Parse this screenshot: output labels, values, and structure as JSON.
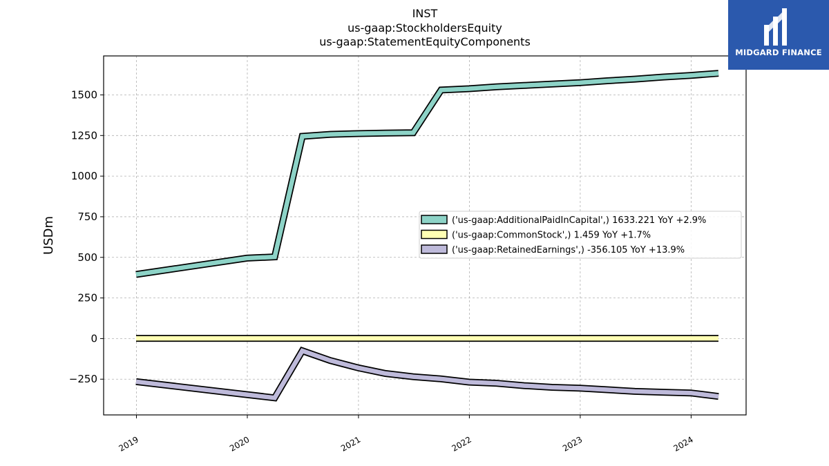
{
  "titles": [
    "INST",
    "us-gaap:StockholdersEquity",
    "us-gaap:StatementEquityComponents"
  ],
  "logo": {
    "text": "MIDGARD FINANCE",
    "background": "#2b59ad"
  },
  "chart_data": {
    "type": "line",
    "title": "INST\nus-gaap:StockholdersEquity\nus-gaap:StatementEquityComponents",
    "xlabel": "",
    "ylabel": "USDm",
    "xlim": [
      "2018-09-15",
      "2024-06-30"
    ],
    "ylim": [
      -470,
      1740
    ],
    "x_ticks": [
      "2019",
      "2020",
      "2021",
      "2022",
      "2023",
      "2024"
    ],
    "y_ticks": [
      -250,
      0,
      250,
      500,
      750,
      1000,
      1250,
      1500
    ],
    "grid": true,
    "legend_position": "center-right",
    "x": [
      "2018-12-31",
      "2019-12-31",
      "2020-03-31",
      "2020-06-30",
      "2020-09-30",
      "2020-12-31",
      "2021-03-31",
      "2021-06-30",
      "2021-09-30",
      "2021-12-31",
      "2022-03-31",
      "2022-06-30",
      "2022-09-30",
      "2022-12-31",
      "2023-03-31",
      "2023-06-30",
      "2023-09-30",
      "2023-12-31",
      "2024-03-31"
    ],
    "series": [
      {
        "name": "('us-gaap:AdditionalPaidInCapital',) 1633.221 YoY +2.9%",
        "color": "#8dd3c7",
        "values": [
          395,
          495,
          503,
          1245,
          1257,
          1262,
          1265,
          1267,
          1530,
          1538,
          1550,
          1558,
          1567,
          1575,
          1587,
          1597,
          1610,
          1620,
          1633
        ]
      },
      {
        "name": "('us-gaap:CommonStock',) 1.459 YoY +1.7%",
        "color": "#ffffb3",
        "values": [
          1.4,
          1.4,
          1.4,
          1.4,
          1.4,
          1.4,
          1.4,
          1.4,
          1.4,
          1.4,
          1.4,
          1.4,
          1.4,
          1.4,
          1.4,
          1.4,
          1.4,
          1.5,
          1.5
        ]
      },
      {
        "name": "('us-gaap:RetainedEarnings',) -356.105 YoY +13.9%",
        "color": "#bebada",
        "values": [
          -265,
          -345,
          -365,
          -75,
          -135,
          -180,
          -215,
          -235,
          -248,
          -268,
          -275,
          -290,
          -300,
          -305,
          -315,
          -325,
          -330,
          -335,
          -356
        ]
      }
    ]
  }
}
